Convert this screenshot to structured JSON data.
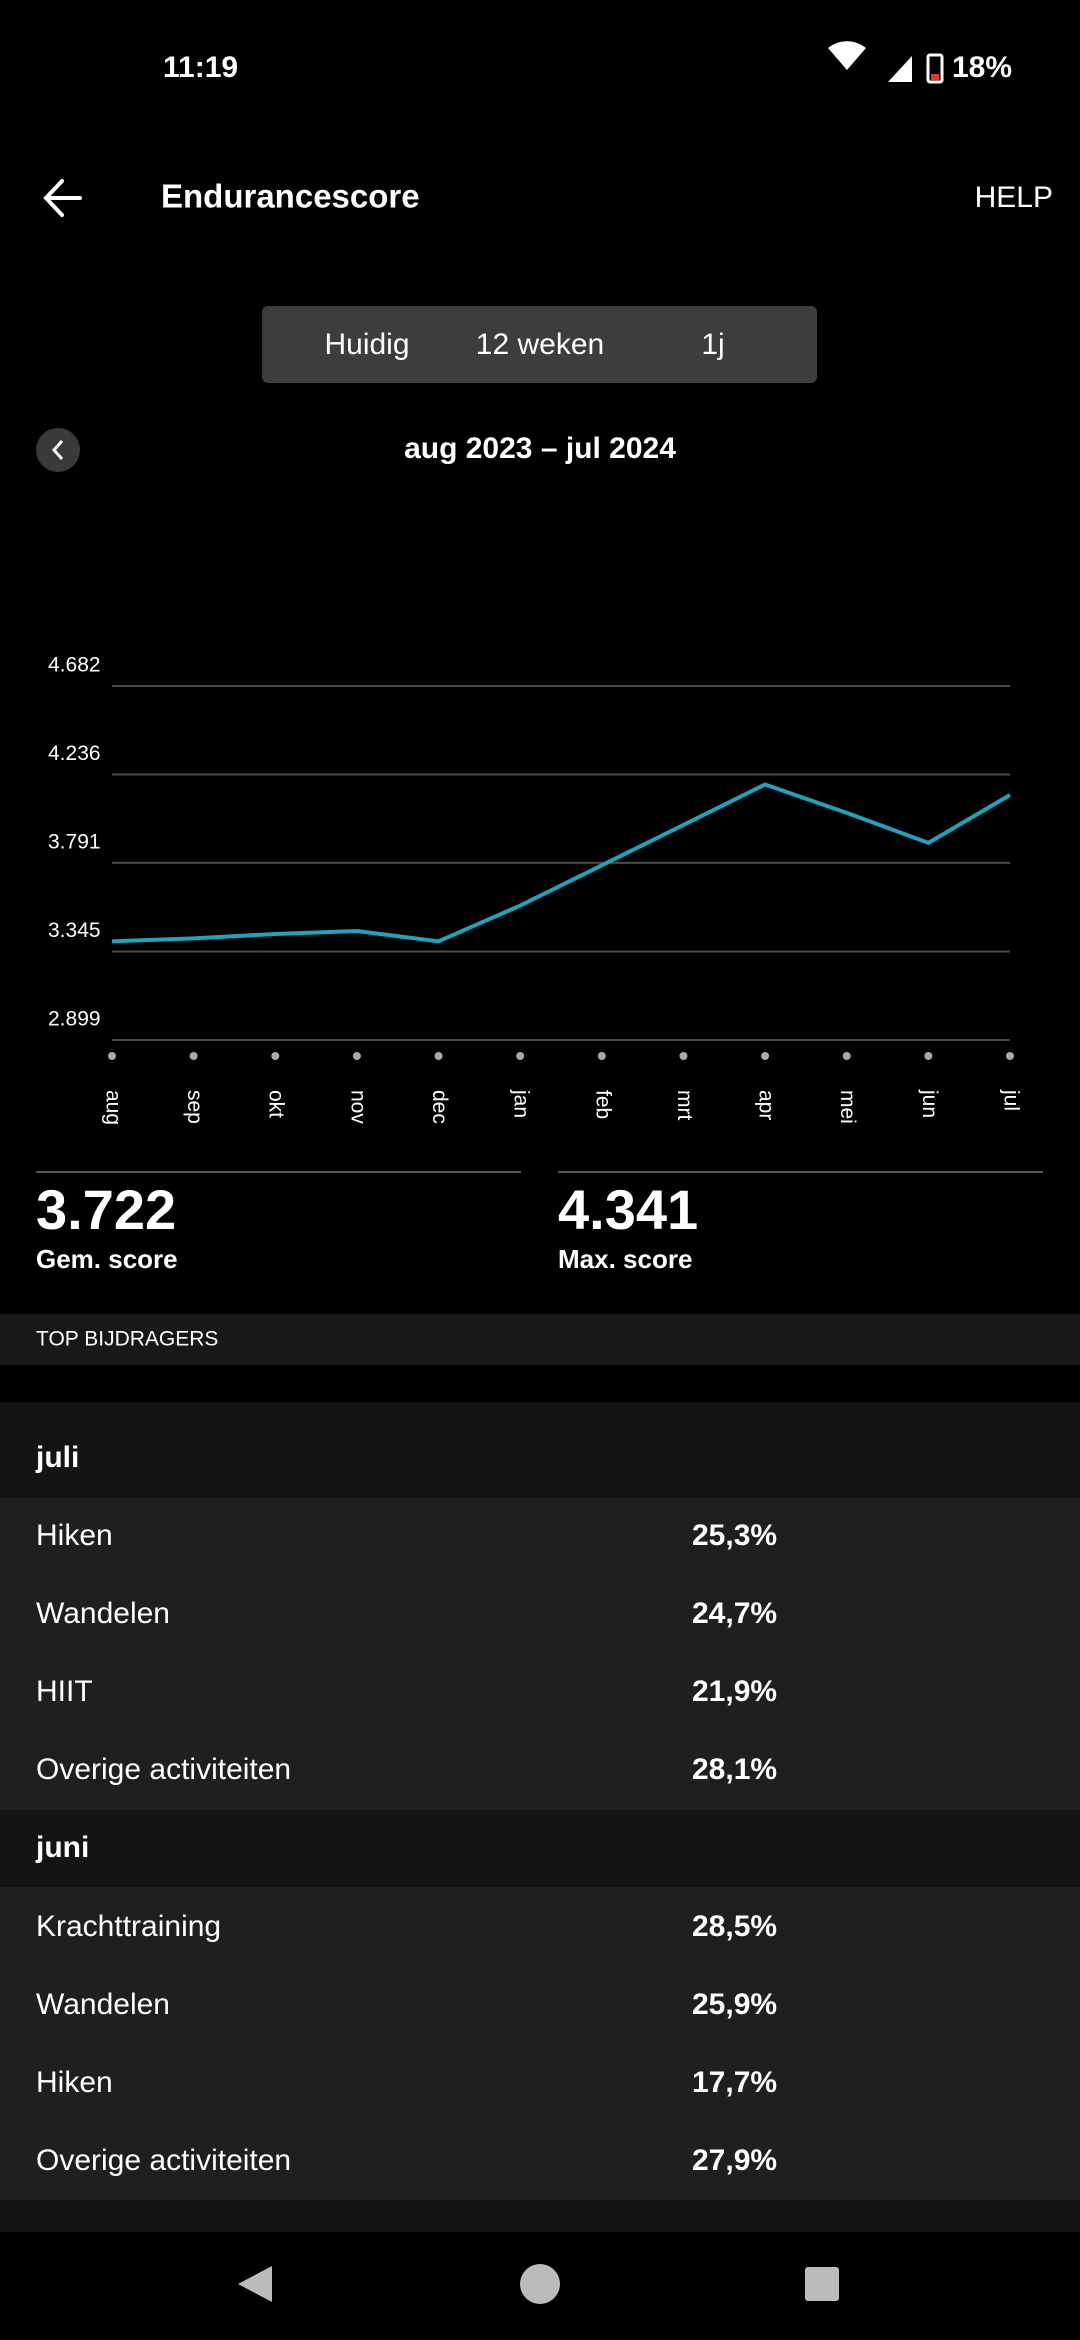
{
  "status": {
    "time": "11:19",
    "battery": "18%"
  },
  "header": {
    "title": "Endurancescore",
    "action": "HELP"
  },
  "tabs": [
    "Huidig",
    "12 weken",
    "1j"
  ],
  "period": "aug 2023 – jul 2024",
  "chart_data": {
    "type": "line",
    "categories": [
      "aug",
      "sep",
      "okt",
      "nov",
      "dec",
      "jan",
      "feb",
      "mrt",
      "apr",
      "mei",
      "jun",
      "jul"
    ],
    "values": [
      3396,
      3411,
      3433,
      3448,
      3396,
      3576,
      3779,
      3982,
      4186,
      4043,
      3892,
      4133
    ],
    "color": "#1ea3bb",
    "ylim": [
      2899,
      4682
    ],
    "yticks": [
      {
        "value": 2899,
        "label": "2.899"
      },
      {
        "value": 3345,
        "label": "3.345"
      },
      {
        "value": 3791,
        "label": "3.791"
      },
      {
        "value": 4236,
        "label": "4.236"
      },
      {
        "value": 4682,
        "label": "4.682"
      }
    ],
    "grid": true
  },
  "stats": [
    {
      "value": "3.722",
      "label": "Gem. score"
    },
    {
      "value": "4.341",
      "label": "Max. score"
    }
  ],
  "contributors": {
    "title": "TOP BIJDRAGERS",
    "months": [
      {
        "name": "juli",
        "items": [
          {
            "activity": "Hiken",
            "share": "25,3%"
          },
          {
            "activity": "Wandelen",
            "share": "24,7%"
          },
          {
            "activity": "HIIT",
            "share": "21,9%"
          },
          {
            "activity": "Overige activiteiten",
            "share": "28,1%"
          }
        ]
      },
      {
        "name": "juni",
        "items": [
          {
            "activity": "Krachttraining",
            "share": "28,5%"
          },
          {
            "activity": "Wandelen",
            "share": "25,9%"
          },
          {
            "activity": "Hiken",
            "share": "17,7%"
          },
          {
            "activity": "Overige activiteiten",
            "share": "27,9%"
          }
        ]
      }
    ]
  }
}
